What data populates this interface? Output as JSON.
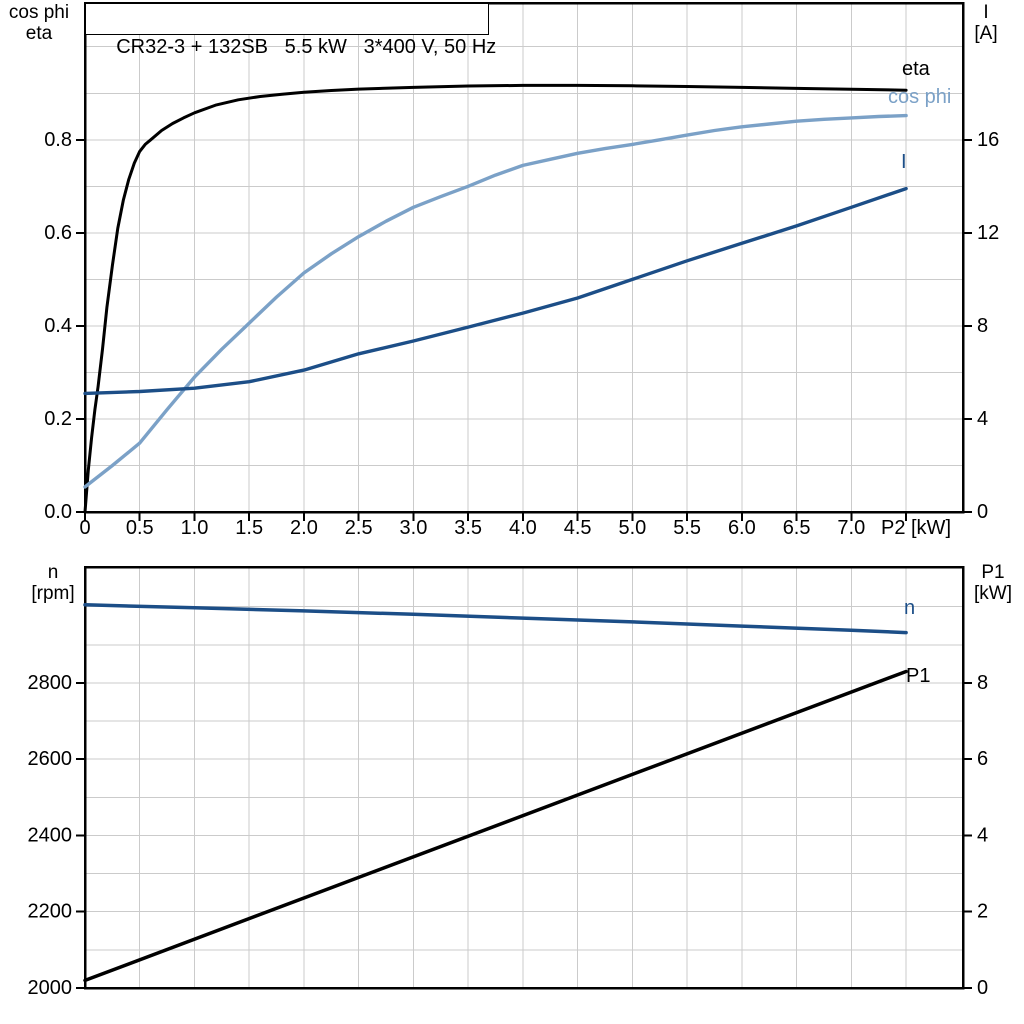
{
  "header": {
    "title": "CR32-3 + 132SB   5.5 kW   3*400 V, 50 Hz"
  },
  "colors": {
    "black": "#000000",
    "dark_blue": "#1c4e87",
    "light_blue": "#7ba1c7",
    "grid": "#cbcbcb"
  },
  "chart_data": [
    {
      "name": "motor-efficiency-cosphi-current",
      "type": "line",
      "grid": true,
      "x": {
        "label": "P2 [kW]",
        "min": 0,
        "max": 8.02,
        "grid_step": 0.5,
        "ticks": [
          {
            "v": 0,
            "label": "0"
          },
          {
            "v": 0.5,
            "label": "0.5"
          },
          {
            "v": 1.0,
            "label": "1.0"
          },
          {
            "v": 1.5,
            "label": "1.5"
          },
          {
            "v": 2.0,
            "label": "2.0"
          },
          {
            "v": 2.5,
            "label": "2.5"
          },
          {
            "v": 3.0,
            "label": "3.0"
          },
          {
            "v": 3.5,
            "label": "3.5"
          },
          {
            "v": 4.0,
            "label": "4.0"
          },
          {
            "v": 4.5,
            "label": "4.5"
          },
          {
            "v": 5.0,
            "label": "5.0"
          },
          {
            "v": 5.5,
            "label": "5.5"
          },
          {
            "v": 6.0,
            "label": "6.0"
          },
          {
            "v": 6.5,
            "label": "6.5"
          },
          {
            "v": 7.0,
            "label": "7.0"
          },
          {
            "v": 7.5,
            "label": ""
          }
        ]
      },
      "y_left": {
        "label_lines": [
          "cos phi",
          "eta"
        ],
        "min": 0,
        "max": 1.094,
        "grid_step": 0.1,
        "ticks": [
          {
            "v": 0.0,
            "label": "0.0"
          },
          {
            "v": 0.2,
            "label": "0.2"
          },
          {
            "v": 0.4,
            "label": "0.4"
          },
          {
            "v": 0.6,
            "label": "0.6"
          },
          {
            "v": 0.8,
            "label": "0.8"
          }
        ]
      },
      "y_right": {
        "label_lines": [
          "I",
          "[A]"
        ],
        "min": 0,
        "max": 21.88,
        "ticks": [
          {
            "v": 0,
            "label": "0"
          },
          {
            "v": 4,
            "label": "4"
          },
          {
            "v": 8,
            "label": "8"
          },
          {
            "v": 12,
            "label": "12"
          },
          {
            "v": 16,
            "label": "16"
          }
        ]
      },
      "series": [
        {
          "name": "eta",
          "axis": "left",
          "color": "#000000",
          "width": 3.0,
          "points": [
            [
              0,
              0
            ],
            [
              0.03,
              0.09
            ],
            [
              0.06,
              0.16
            ],
            [
              0.09,
              0.22
            ],
            [
              0.12,
              0.27
            ],
            [
              0.16,
              0.35
            ],
            [
              0.2,
              0.44
            ],
            [
              0.25,
              0.53
            ],
            [
              0.3,
              0.61
            ],
            [
              0.35,
              0.67
            ],
            [
              0.4,
              0.715
            ],
            [
              0.45,
              0.75
            ],
            [
              0.5,
              0.775
            ],
            [
              0.55,
              0.79
            ],
            [
              0.6,
              0.8
            ],
            [
              0.7,
              0.82
            ],
            [
              0.8,
              0.835
            ],
            [
              0.9,
              0.847
            ],
            [
              1.0,
              0.858
            ],
            [
              1.2,
              0.875
            ],
            [
              1.4,
              0.886
            ],
            [
              1.6,
              0.893
            ],
            [
              1.8,
              0.898
            ],
            [
              2.0,
              0.902
            ],
            [
              2.25,
              0.906
            ],
            [
              2.5,
              0.909
            ],
            [
              3.0,
              0.9125
            ],
            [
              3.5,
              0.9155
            ],
            [
              4.0,
              0.917
            ],
            [
              4.5,
              0.917
            ],
            [
              5.0,
              0.916
            ],
            [
              5.5,
              0.9145
            ],
            [
              6.0,
              0.9125
            ],
            [
              6.5,
              0.9105
            ],
            [
              7.0,
              0.9085
            ],
            [
              7.5,
              0.9065
            ]
          ]
        },
        {
          "name": "cos phi",
          "axis": "left",
          "color": "#7ba1c7",
          "width": 3.4,
          "points": [
            [
              0,
              0.054
            ],
            [
              0.25,
              0.1
            ],
            [
              0.5,
              0.148
            ],
            [
              0.75,
              0.22
            ],
            [
              1.0,
              0.29
            ],
            [
              1.25,
              0.35
            ],
            [
              1.5,
              0.406
            ],
            [
              1.75,
              0.462
            ],
            [
              2.0,
              0.514
            ],
            [
              2.25,
              0.555
            ],
            [
              2.5,
              0.592
            ],
            [
              2.75,
              0.625
            ],
            [
              3.0,
              0.655
            ],
            [
              3.25,
              0.678
            ],
            [
              3.5,
              0.7
            ],
            [
              3.75,
              0.724
            ],
            [
              4.0,
              0.745
            ],
            [
              4.25,
              0.758
            ],
            [
              4.5,
              0.771
            ],
            [
              4.75,
              0.781
            ],
            [
              5.0,
              0.79
            ],
            [
              5.25,
              0.8
            ],
            [
              5.5,
              0.81
            ],
            [
              5.75,
              0.82
            ],
            [
              6.0,
              0.828
            ],
            [
              6.25,
              0.834
            ],
            [
              6.5,
              0.84
            ],
            [
              6.75,
              0.844
            ],
            [
              7.0,
              0.847
            ],
            [
              7.25,
              0.85
            ],
            [
              7.5,
              0.852
            ]
          ]
        },
        {
          "name": "I",
          "axis": "right",
          "color": "#1c4e87",
          "width": 3.4,
          "points": [
            [
              0,
              5.1
            ],
            [
              0.5,
              5.18
            ],
            [
              1.0,
              5.32
            ],
            [
              1.5,
              5.6
            ],
            [
              2.0,
              6.1
            ],
            [
              2.5,
              6.8
            ],
            [
              3.0,
              7.35
            ],
            [
              3.5,
              7.95
            ],
            [
              4.0,
              8.55
            ],
            [
              4.5,
              9.2
            ],
            [
              5.0,
              10.0
            ],
            [
              5.5,
              10.8
            ],
            [
              6.0,
              11.55
            ],
            [
              6.5,
              12.3
            ],
            [
              7.0,
              13.1
            ],
            [
              7.5,
              13.9
            ]
          ]
        }
      ]
    },
    {
      "name": "speed-inputpower",
      "type": "line",
      "grid": true,
      "x": {
        "label": "",
        "min": 0,
        "max": 8.02,
        "grid_step": 0.5,
        "ticks": []
      },
      "y_left": {
        "label_lines": [
          "n",
          "[rpm]"
        ],
        "min": 2000,
        "max": 3104,
        "grid_step": 100,
        "ticks": [
          {
            "v": 2000,
            "label": "2000"
          },
          {
            "v": 2200,
            "label": "2200"
          },
          {
            "v": 2400,
            "label": "2400"
          },
          {
            "v": 2600,
            "label": "2600"
          },
          {
            "v": 2800,
            "label": "2800"
          }
        ]
      },
      "y_right": {
        "label_lines": [
          "P1",
          "[kW]"
        ],
        "min": 0,
        "max": 11.04,
        "ticks": [
          {
            "v": 0,
            "label": "0"
          },
          {
            "v": 2,
            "label": "2"
          },
          {
            "v": 4,
            "label": "4"
          },
          {
            "v": 6,
            "label": "6"
          },
          {
            "v": 8,
            "label": "8"
          }
        ]
      },
      "series": [
        {
          "name": "n",
          "axis": "left",
          "color": "#1c4e87",
          "width": 3.5,
          "points": [
            [
              0,
              3005
            ],
            [
              1,
              2997
            ],
            [
              2,
              2989
            ],
            [
              3,
              2980
            ],
            [
              4,
              2970
            ],
            [
              5,
              2960
            ],
            [
              6,
              2949
            ],
            [
              7,
              2938
            ],
            [
              7.5,
              2932
            ]
          ]
        },
        {
          "name": "P1",
          "axis": "right",
          "color": "#000000",
          "width": 3.5,
          "points": [
            [
              0,
              0.2
            ],
            [
              2.5,
              2.9
            ],
            [
              5.0,
              5.6
            ],
            [
              7.5,
              8.3
            ]
          ]
        }
      ]
    }
  ]
}
